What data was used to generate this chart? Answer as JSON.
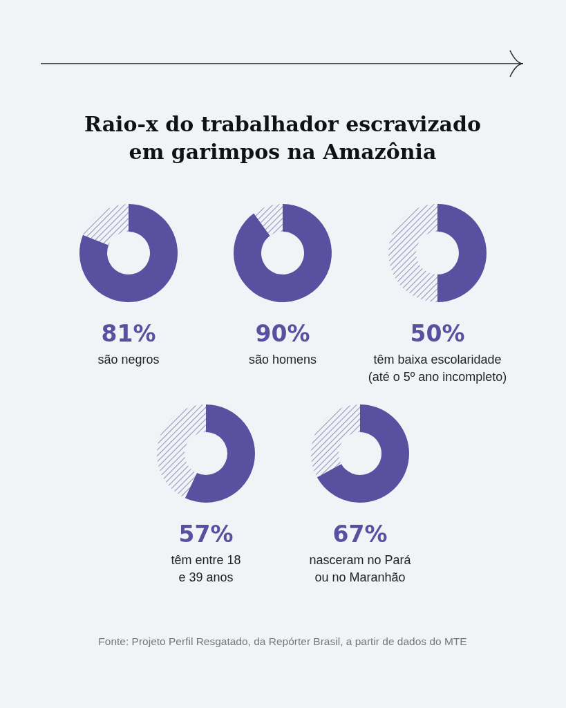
{
  "chart_data": [
    {
      "type": "donut",
      "title": "Raio-x do trabalhador escravizado\nem garimpos na Amazônia",
      "categories": [
        "são negros",
        null
      ],
      "values": [
        81,
        19
      ],
      "value_labels": [
        "81%",
        null
      ],
      "colors": [
        "#5b4f9f",
        "#7c72b3"
      ]
    },
    {
      "type": "donut",
      "categories": [
        "são homens",
        null
      ],
      "values": [
        90,
        10
      ],
      "value_labels": [
        "90%",
        null
      ],
      "colors": [
        "#5b4f9f",
        "#7c72b3"
      ]
    },
    {
      "type": "donut",
      "categories": [
        "têm baixa escolaridade\n(até o 5º ano incompleto)",
        null
      ],
      "values": [
        50,
        50
      ],
      "value_labels": [
        "50%",
        null
      ],
      "colors": [
        "#5b4f9f",
        "#7c72b3"
      ]
    },
    {
      "type": "donut",
      "categories": [
        "têm entre 18\ne 39 anos",
        null
      ],
      "values": [
        57,
        43
      ],
      "value_labels": [
        "57%",
        null
      ],
      "colors": [
        "#5b4f9f",
        "#7c72b3"
      ]
    },
    {
      "type": "donut",
      "categories": [
        "nasceram no Pará\nou no Maranhão",
        null
      ],
      "values": [
        67,
        33
      ],
      "value_labels": [
        "67%",
        null
      ],
      "colors": [
        "#5b4f9f",
        "#7c72b3"
      ],
      "annotations": [
        "Fonte: Projeto Perfil Resgatado, da Repórter Brasil, a partir de dados do MTE"
      ]
    }
  ]
}
